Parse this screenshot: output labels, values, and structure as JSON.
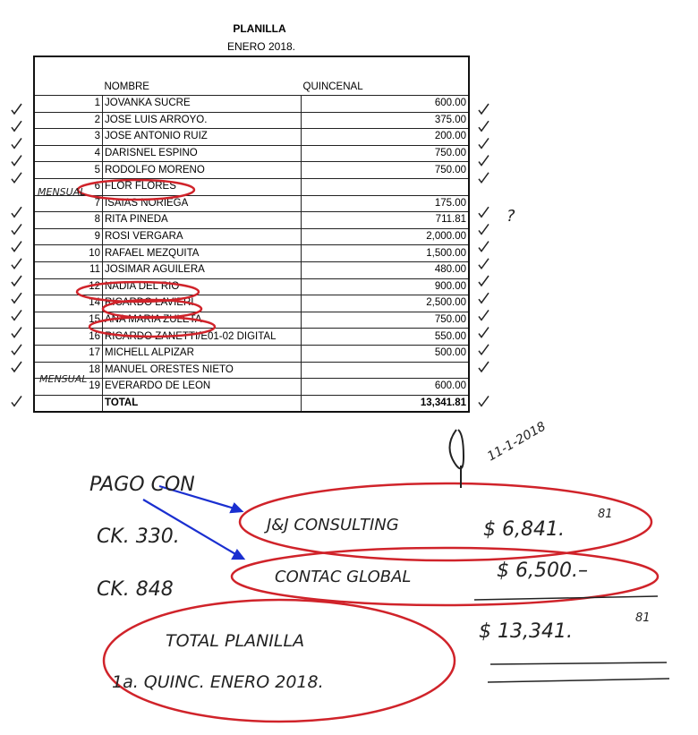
{
  "title": "PLANILLA",
  "subtitle": "ENERO 2018.",
  "columns": {
    "name": "NOMBRE",
    "amount": "QUINCENAL"
  },
  "rows": [
    {
      "num": "1",
      "name": "JOVANKA SUCRE",
      "amount": "600.00"
    },
    {
      "num": "2",
      "name": "JOSE LUIS ARROYO.",
      "amount": "375.00"
    },
    {
      "num": "3",
      "name": "JOSE ANTONIO RUIZ",
      "amount": "200.00"
    },
    {
      "num": "4",
      "name": "DARISNEL ESPINO",
      "amount": "750.00"
    },
    {
      "num": "5",
      "name": "RODOLFO MORENO",
      "amount": "750.00"
    },
    {
      "num": "6",
      "name": "FLOR FLORES",
      "amount": ""
    },
    {
      "num": "7",
      "name": "ISAIAS NORIEGA",
      "amount": "175.00"
    },
    {
      "num": "8",
      "name": "RITA PINEDA",
      "amount": "711.81"
    },
    {
      "num": "9",
      "name": "ROSI VERGARA",
      "amount": "2,000.00"
    },
    {
      "num": "10",
      "name": "RAFAEL MEZQUITA",
      "amount": "1,500.00"
    },
    {
      "num": "11",
      "name": "JOSIMAR AGUILERA",
      "amount": "480.00"
    },
    {
      "num": "12",
      "name": "NADIA DEL RIO",
      "amount": "900.00"
    },
    {
      "num": "14",
      "name": "RICARDO LAVIERI.",
      "amount": "2,500.00"
    },
    {
      "num": "15",
      "name": "ANA MARIA ZULETA",
      "amount": "750.00"
    },
    {
      "num": "16",
      "name": "RICARDO ZANETTI/E01-02 DIGITAL",
      "amount": "550.00"
    },
    {
      "num": "17",
      "name": "MICHELL ALPIZAR",
      "amount": "500.00"
    },
    {
      "num": "18",
      "name": "MANUEL ORESTES NIETO",
      "amount": ""
    },
    {
      "num": "19",
      "name": "EVERARDO DE LEON",
      "amount": "600.00"
    }
  ],
  "total": {
    "label": "TOTAL",
    "amount": "13,341.81"
  },
  "annotations": {
    "mensual": "MENSUAL",
    "question": "?",
    "date": "11-1-2018",
    "pago_con": "PAGO  CON",
    "ck1": "CK. 330.",
    "ck2": "CK. 848",
    "payee1": "J&J CONSULTING",
    "amount1": "$ 6,841.",
    "amount1_cents": "81",
    "payee2": "CONTAC GLOBAL",
    "amount2": "$ 6,500.–",
    "grand_total": "$ 13,341.",
    "grand_total_cents": "81",
    "note_line1": "TOTAL  PLANILLA",
    "note_line2": "1a. QUINC.  ENERO 2018."
  },
  "colors": {
    "circle": "#d0232a",
    "arrow": "#1a2fd0",
    "ink": "#222222"
  }
}
